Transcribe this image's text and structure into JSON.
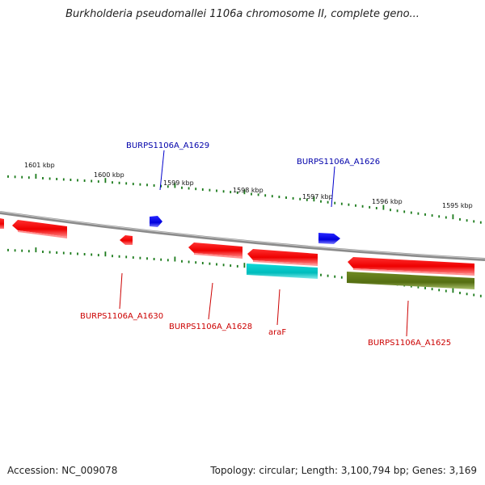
{
  "title": "Burkholderia pseudomallei 1106a chromosome II, complete geno...",
  "footer": {
    "accession": "Accession: NC_009078",
    "summary": "Topology: circular; Length: 3,100,794 bp; Genes: 3,169"
  },
  "colors": {
    "forward_gene": "#ff0000",
    "forward_gene_label": "#0000aa",
    "reverse_gene_label": "#cc0000",
    "blue_feature": "#0000ff",
    "cyan_feature": "#00cccc",
    "olive_feature": "#5f7f1a",
    "backbone": "#888888",
    "tick": "#1a7a1a"
  },
  "ticks": [
    {
      "label": "1601 kbp"
    },
    {
      "label": "1600 kbp"
    },
    {
      "label": "1599 kbp"
    },
    {
      "label": "1598 kbp"
    },
    {
      "label": "1597 kbp"
    },
    {
      "label": "1596 kbp"
    },
    {
      "label": "1595 kbp"
    }
  ],
  "genes": [
    {
      "label": "BURPS1106A_A1629",
      "strand": "forward"
    },
    {
      "label": "BURPS1106A_A1626",
      "strand": "forward"
    },
    {
      "label": "BURPS1106A_A1630",
      "strand": "reverse"
    },
    {
      "label": "BURPS1106A_A1628",
      "strand": "reverse"
    },
    {
      "label": "araF",
      "strand": "reverse"
    },
    {
      "label": "BURPS1106A_A1625",
      "strand": "reverse"
    }
  ]
}
